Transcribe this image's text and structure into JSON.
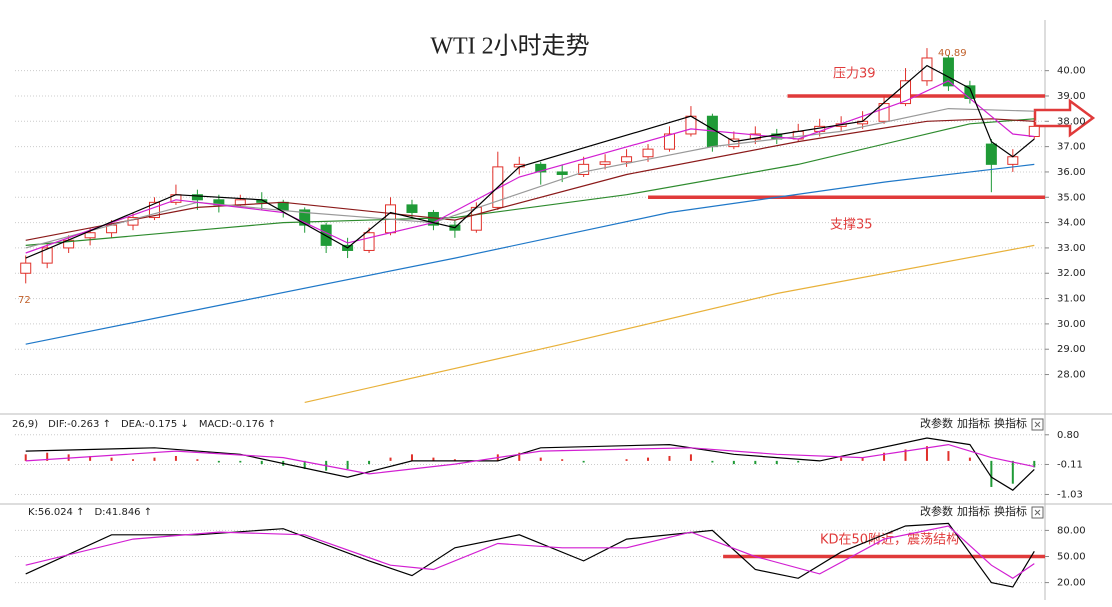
{
  "chart_data": [
    {
      "type": "candlestick",
      "title": "WTI 2小时走势",
      "xlim": [
        -0.5,
        47.5
      ],
      "ylim": [
        26.6,
        42.0
      ],
      "yticks": [
        {
          "value": 28,
          "label": "28.00"
        },
        {
          "value": 29,
          "label": "29.00"
        },
        {
          "value": 30,
          "label": "30.00"
        },
        {
          "value": 31,
          "label": "31.00"
        },
        {
          "value": 32,
          "label": "32.00"
        },
        {
          "value": 33,
          "label": "33.00"
        },
        {
          "value": 34,
          "label": "34.00"
        },
        {
          "value": 35,
          "label": "35.00"
        },
        {
          "value": 36,
          "label": "36.00"
        },
        {
          "value": 37,
          "label": "37.00"
        },
        {
          "value": 38,
          "label": "38.00"
        },
        {
          "value": 39,
          "label": "39.00"
        },
        {
          "value": 40,
          "label": "40.00"
        }
      ],
      "grid": true,
      "up_color": "#e0302a",
      "down_color": "#1f9a36",
      "ohlc": [
        [
          32.0,
          32.7,
          31.6,
          32.4
        ],
        [
          32.4,
          33.2,
          32.2,
          33.0
        ],
        [
          33.0,
          33.5,
          32.8,
          33.3
        ],
        [
          33.4,
          33.8,
          33.1,
          33.6
        ],
        [
          33.6,
          34.1,
          33.4,
          33.9
        ],
        [
          33.9,
          34.4,
          33.7,
          34.2
        ],
        [
          34.2,
          35.0,
          34.1,
          34.8
        ],
        [
          34.8,
          35.5,
          34.7,
          35.1
        ],
        [
          35.1,
          35.3,
          34.5,
          34.9
        ],
        [
          34.9,
          35.1,
          34.4,
          34.7
        ],
        [
          34.7,
          35.1,
          34.6,
          34.9
        ],
        [
          34.9,
          35.2,
          34.5,
          34.8
        ],
        [
          34.8,
          34.9,
          34.2,
          34.5
        ],
        [
          34.5,
          34.6,
          33.6,
          33.9
        ],
        [
          33.9,
          34.0,
          32.8,
          33.1
        ],
        [
          33.1,
          33.4,
          32.6,
          32.9
        ],
        [
          32.9,
          33.8,
          32.8,
          33.6
        ],
        [
          33.6,
          35.0,
          33.5,
          34.7
        ],
        [
          34.7,
          34.9,
          34.2,
          34.4
        ],
        [
          34.4,
          34.5,
          33.7,
          33.9
        ],
        [
          33.9,
          34.1,
          33.4,
          33.7
        ],
        [
          33.7,
          34.8,
          33.6,
          34.6
        ],
        [
          34.6,
          36.8,
          34.5,
          36.2
        ],
        [
          36.2,
          36.6,
          35.9,
          36.3
        ],
        [
          36.3,
          36.4,
          35.5,
          36.0
        ],
        [
          36.0,
          36.3,
          35.6,
          35.9
        ],
        [
          35.9,
          36.6,
          35.8,
          36.3
        ],
        [
          36.3,
          36.7,
          36.1,
          36.4
        ],
        [
          36.4,
          36.9,
          36.2,
          36.6
        ],
        [
          36.6,
          37.1,
          36.4,
          36.9
        ],
        [
          36.9,
          37.8,
          36.8,
          37.5
        ],
        [
          37.5,
          38.6,
          37.4,
          38.2
        ],
        [
          38.2,
          38.3,
          36.8,
          37.0
        ],
        [
          37.0,
          37.6,
          36.9,
          37.3
        ],
        [
          37.3,
          37.8,
          37.1,
          37.5
        ],
        [
          37.5,
          37.7,
          37.1,
          37.3
        ],
        [
          37.3,
          37.9,
          37.2,
          37.6
        ],
        [
          37.6,
          38.1,
          37.4,
          37.8
        ],
        [
          37.8,
          38.2,
          37.6,
          37.9
        ],
        [
          37.9,
          38.4,
          37.7,
          38.0
        ],
        [
          38.0,
          39.0,
          37.9,
          38.7
        ],
        [
          38.7,
          40.1,
          38.6,
          39.6
        ],
        [
          39.6,
          40.89,
          39.4,
          40.5
        ],
        [
          40.5,
          40.6,
          39.2,
          39.4
        ],
        [
          39.4,
          39.6,
          38.7,
          38.9
        ],
        [
          37.1,
          37.3,
          35.2,
          36.3
        ],
        [
          36.3,
          36.9,
          36.0,
          36.6
        ],
        [
          37.4,
          38.1,
          37.3,
          37.8
        ]
      ],
      "lines": [
        {
          "color": "#1f78c8",
          "x": [
            0,
            10,
            20,
            30,
            40,
            47
          ],
          "values": [
            29.2,
            30.9,
            32.6,
            34.4,
            35.6,
            36.3
          ]
        },
        {
          "color": "#e8b13a",
          "x": [
            13,
            25,
            35,
            47
          ],
          "values": [
            26.9,
            29.2,
            31.2,
            33.1
          ]
        },
        {
          "color": "#2e8b2e",
          "x": [
            0,
            8,
            12,
            20,
            28,
            36,
            44,
            47
          ],
          "values": [
            33.1,
            33.7,
            34.0,
            34.2,
            35.1,
            36.3,
            37.9,
            38.1
          ]
        },
        {
          "color": "#8b1a1a",
          "x": [
            0,
            8,
            12,
            20,
            28,
            36,
            42,
            45,
            47
          ],
          "values": [
            33.3,
            34.6,
            34.8,
            34.1,
            35.9,
            37.2,
            38.0,
            38.1,
            38.0
          ]
        },
        {
          "color": "#999999",
          "x": [
            0,
            8,
            13,
            19,
            26,
            32,
            38,
            43,
            47
          ],
          "values": [
            33.0,
            34.8,
            34.4,
            34.0,
            36.0,
            37.0,
            37.6,
            38.5,
            38.4
          ]
        },
        {
          "color": "#d21fd2",
          "x": [
            0,
            7,
            12,
            15,
            19,
            23,
            31,
            36,
            41,
            43,
            46,
            47
          ],
          "values": [
            32.8,
            34.9,
            34.4,
            33.2,
            34.0,
            35.8,
            37.7,
            37.3,
            38.8,
            39.6,
            37.5,
            37.4
          ]
        },
        {
          "color": "#000000",
          "x": [
            0,
            7,
            11,
            15,
            17,
            20,
            23,
            31,
            33,
            39,
            42,
            44,
            45,
            46,
            47
          ],
          "values": [
            32.6,
            35.1,
            34.9,
            33.0,
            34.4,
            33.8,
            36.2,
            38.2,
            37.2,
            38.0,
            40.2,
            39.3,
            37.2,
            36.6,
            37.3
          ]
        }
      ],
      "levels": [
        {
          "value": 39,
          "x": [
            35.5,
            47.5
          ],
          "color": "#e03a3a"
        },
        {
          "value": 35,
          "x": [
            29,
            47.5
          ],
          "color": "#e03a3a"
        }
      ],
      "annotations": [
        "压力39",
        "支撑35",
        "40.89",
        "72"
      ]
    },
    {
      "type": "macd",
      "xlim": [
        -0.5,
        47.5
      ],
      "ylim": [
        -1.2,
        1.1
      ],
      "yticks": [
        {
          "value": 0.8,
          "label": "0.80"
        },
        {
          "value": -0.11,
          "label": "-0.11"
        },
        {
          "value": -1.03,
          "label": "-1.03"
        }
      ],
      "grid": true,
      "up_color": "#e0302a",
      "down_color": "#1f9a36",
      "header": [
        {
          "text": "26,9)",
          "color": "#222222"
        },
        {
          "text": "DIF:-0.263 ↑",
          "color": "#222222"
        },
        {
          "text": "DEA:-0.175 ↓",
          "color": "#d21fd2"
        },
        {
          "text": "MACD:-0.176 ↑",
          "color": "#888888"
        }
      ],
      "buttons": [
        "改参数",
        "加指标",
        "换指标"
      ],
      "histogram": [
        0.2,
        0.25,
        0.2,
        0.15,
        0.1,
        0.05,
        0.1,
        0.15,
        0.05,
        -0.05,
        -0.05,
        -0.1,
        -0.15,
        -0.25,
        -0.3,
        -0.25,
        -0.1,
        0.1,
        0.2,
        0.1,
        0.05,
        0.0,
        0.2,
        0.25,
        0.1,
        0.05,
        -0.05,
        0.0,
        0.05,
        0.1,
        0.15,
        0.2,
        -0.05,
        -0.1,
        -0.1,
        -0.1,
        -0.05,
        0.0,
        0.1,
        0.1,
        0.25,
        0.35,
        0.45,
        0.3,
        0.1,
        -0.8,
        -0.7,
        -0.2
      ],
      "lines": [
        {
          "color": "#000000",
          "x": [
            0,
            6,
            10,
            15,
            18,
            22,
            24,
            30,
            33,
            37,
            42,
            44,
            45,
            46,
            47
          ],
          "values": [
            0.3,
            0.4,
            0.2,
            -0.5,
            0.0,
            0.0,
            0.4,
            0.5,
            0.2,
            0.0,
            0.7,
            0.5,
            -0.5,
            -0.9,
            -0.263
          ]
        },
        {
          "color": "#d21fd2",
          "x": [
            0,
            7,
            12,
            16,
            20,
            24,
            31,
            35,
            39,
            43,
            45,
            47
          ],
          "values": [
            0.0,
            0.3,
            0.1,
            -0.4,
            -0.1,
            0.3,
            0.4,
            0.2,
            0.1,
            0.5,
            0.1,
            -0.175
          ]
        }
      ]
    },
    {
      "type": "kd",
      "xlim": [
        -0.5,
        47.5
      ],
      "ylim": [
        0,
        100
      ],
      "yticks": [
        {
          "value": 80,
          "label": "80.00"
        },
        {
          "value": 50,
          "label": "50.00"
        },
        {
          "value": 20,
          "label": "20.00"
        }
      ],
      "grid": true,
      "header": [
        {
          "text": "K:56.024 ↑",
          "color": "#222222"
        },
        {
          "text": "D:41.846 ↑",
          "color": "#d21fd2"
        }
      ],
      "buttons": [
        "改参数",
        "加指标",
        "换指标"
      ],
      "lines": [
        {
          "color": "#000000",
          "x": [
            0,
            4,
            8,
            12,
            16,
            18,
            20,
            23,
            26,
            28,
            32,
            34,
            36,
            38,
            41,
            43,
            45,
            46,
            47
          ],
          "values": [
            30,
            75,
            75,
            82,
            45,
            28,
            60,
            75,
            45,
            70,
            80,
            35,
            25,
            55,
            85,
            88,
            20,
            15,
            56.024
          ]
        },
        {
          "color": "#d21fd2",
          "x": [
            0,
            5,
            9,
            13,
            17,
            19,
            22,
            25,
            28,
            31,
            34,
            37,
            40,
            43,
            45,
            46,
            47
          ],
          "values": [
            40,
            70,
            78,
            75,
            40,
            35,
            65,
            60,
            60,
            78,
            50,
            30,
            70,
            85,
            40,
            25,
            41.846
          ]
        }
      ],
      "levels": [
        {
          "value": 50,
          "x": [
            32.5,
            47.5
          ],
          "color": "#e03a3a"
        }
      ],
      "annotations": [
        "KD在50附近，震荡结构"
      ]
    }
  ]
}
